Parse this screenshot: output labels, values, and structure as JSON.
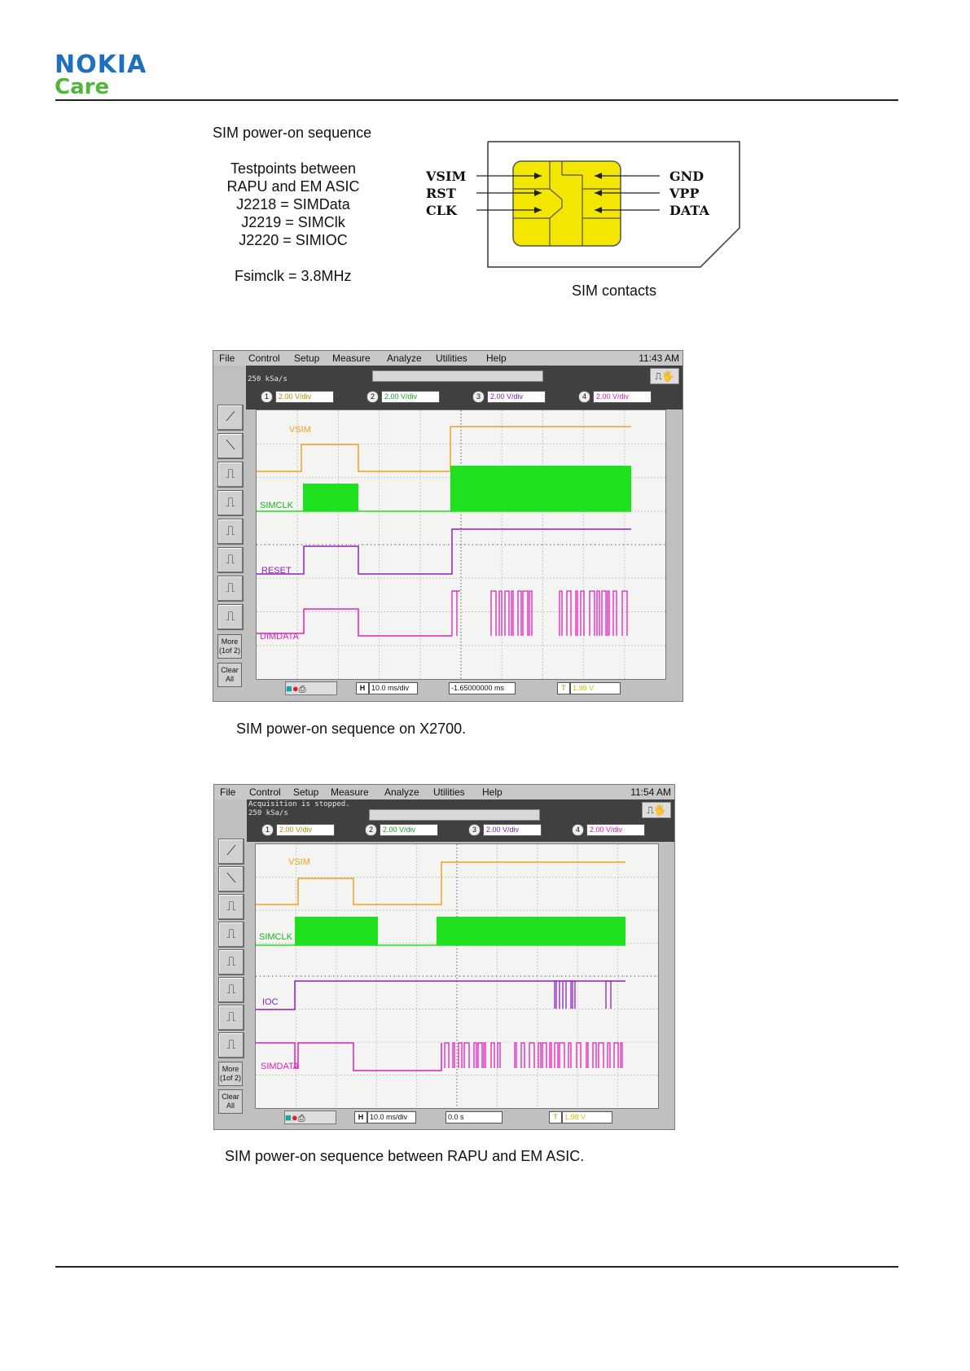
{
  "header": {
    "brand": "NOKIA",
    "sub_brand": "Care"
  },
  "info": {
    "title": "SIM power-on sequence",
    "lines": [
      "Testpoints between",
      "RAPU and EM ASIC",
      "J2218 = SIMData",
      "J2219 = SIMClk",
      "J2220 = SIMIOC"
    ],
    "freq": "Fsimclk = 3.8MHz"
  },
  "sim_diagram": {
    "left_labels": [
      "VSIM",
      "RST",
      "CLK"
    ],
    "right_labels": [
      "GND",
      "VPP",
      "DATA"
    ],
    "caption": "SIM contacts",
    "chip_color": "#f3e600"
  },
  "scopes": [
    {
      "menu": [
        "File",
        "Control",
        "Setup",
        "Measure",
        "Analyze",
        "Utilities",
        "Help"
      ],
      "time": "11:43 AM",
      "status_lines": [
        "250 kSa/s"
      ],
      "channels": [
        {
          "num": "1",
          "vdiv": "2.00 V/div"
        },
        {
          "num": "2",
          "vdiv": "2.00 V/div"
        },
        {
          "num": "3",
          "vdiv": "2.00 V/div"
        },
        {
          "num": "4",
          "vdiv": "2.00 V/div"
        }
      ],
      "trace_labels": [
        "VSIM",
        "SIMCLK",
        "RESET",
        "DIMDATA"
      ],
      "side_more": "More\n(1of 2)",
      "side_clear": "Clear\nAll",
      "timebase": "10.0 ms/div",
      "delay": "-1.65000000 ms",
      "trigger_level": "1.98 V",
      "caption": "SIM power-on sequence on X2700."
    },
    {
      "menu": [
        "File",
        "Control",
        "Setup",
        "Measure",
        "Analyze",
        "Utilities",
        "Help"
      ],
      "time": "11:54 AM",
      "status_lines": [
        "Acquisition is stopped.",
        "250 kSa/s"
      ],
      "channels": [
        {
          "num": "1",
          "vdiv": "2.00 V/div"
        },
        {
          "num": "2",
          "vdiv": "2.00 V/div"
        },
        {
          "num": "3",
          "vdiv": "2.00 V/div"
        },
        {
          "num": "4",
          "vdiv": "2.00 V/div"
        }
      ],
      "trace_labels": [
        "VSIM",
        "SIMCLK",
        "IOC",
        "SIMDATA"
      ],
      "side_more": "More\n(1of 2)",
      "side_clear": "Clear\nAll",
      "timebase": "10.0 ms/div",
      "delay": "0.0 s",
      "trigger_level": "1.98 V",
      "caption": "SIM power-on sequence between RAPU and EM ASIC."
    }
  ],
  "colors": {
    "vsim": "#f0a020",
    "simclk": "#20e020",
    "reset": "#9020c0",
    "data": "#e020c0",
    "brand_blue": "#1f6fc0",
    "brand_green": "#4fb63a"
  }
}
